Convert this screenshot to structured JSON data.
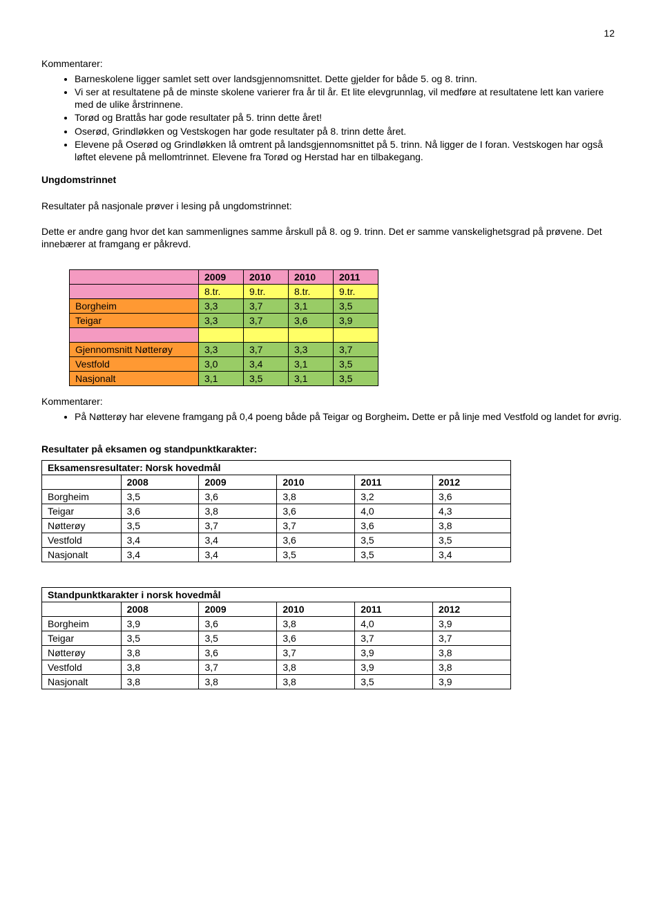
{
  "page_number": "12",
  "kommentarer_label": "Kommentarer:",
  "bullets_top": [
    "Barneskolene ligger samlet sett over landsgjennomsnittet. Dette gjelder for både 5. og 8. trinn.",
    "Vi ser at resultatene på de minste skolene varierer fra år til år. Et lite elevgrunnlag, vil medføre at resultatene lett kan variere med de ulike årstrinnene.",
    "Torød og Brattås har gode resultater på 5. trinn dette året!",
    "Oserød, Grindløkken og Vestskogen har gode resultater på 8. trinn dette året.",
    "Elevene på Oserød og Grindløkken lå omtrent på landsgjennomsnittet på 5. trinn. Nå ligger de I foran. Vestskogen har også løftet elevene på mellomtrinnet. Elevene fra Torød og Herstad har en tilbakegang."
  ],
  "ungdom_heading": "Ungdomstrinnet",
  "ungdom_intro": "Resultater på nasjonale prøver i lesing på ungdomstrinnet:",
  "ungdom_para": "Dette er andre gang hvor det kan sammenlignes samme årskull på 8. og 9. trinn. Det er samme vanskelighetsgrad på prøvene.  Det innebærer at framgang er påkrevd.",
  "table1": {
    "type": "table",
    "colors": {
      "pink": "#f49ac1",
      "yellow": "#ffff66",
      "orange": "#ff9933",
      "green": "#99cc66",
      "border": "#000000",
      "text": "#000000"
    },
    "font_size_pt": 11,
    "years": [
      "2009",
      "2010",
      "2010",
      "2011"
    ],
    "trinns": [
      "8.tr.",
      "9.tr.",
      "8.tr.",
      "9.tr."
    ],
    "rows_top": [
      {
        "label": "Borgheim",
        "vals": [
          "3,3",
          "3,7",
          "3,1",
          "3,5"
        ]
      },
      {
        "label": "Teigar",
        "vals": [
          "3,3",
          "3,7",
          "3,6",
          "3,9"
        ]
      }
    ],
    "rows_bottom": [
      {
        "label": "Gjennomsnitt Nøtterøy",
        "vals": [
          "3,3",
          "3,7",
          "3,3",
          "3,7"
        ]
      },
      {
        "label": "Vestfold",
        "vals": [
          "3,0",
          "3,4",
          "3,1",
          "3,5"
        ]
      },
      {
        "label": "Nasjonalt",
        "vals": [
          "3,1",
          "3,5",
          "3,1",
          "3,5"
        ]
      }
    ]
  },
  "bullets_mid_prefix": "På Nøtterøy har elevene framgang på 0,4 poeng både på Teigar og Borgheim",
  "bullets_mid_bold": ".",
  "bullets_mid_suffix": "  Dette er på linje med Vestfold og landet for øvrig.",
  "results_heading": "Resultater på eksamen og standpunktkarakter:",
  "table2": {
    "title": "Eksamensresultater: Norsk hovedmål",
    "years": [
      "2008",
      "2009",
      "2010",
      "2011",
      "2012"
    ],
    "rows": [
      {
        "label": "Borgheim",
        "vals": [
          "3,5",
          "3,6",
          "3,8",
          "3,2",
          "3,6"
        ]
      },
      {
        "label": "Teigar",
        "vals": [
          "3,6",
          "3,8",
          "3,6",
          "4,0",
          "4,3"
        ]
      },
      {
        "label": "Nøtterøy",
        "vals": [
          "3,5",
          "3,7",
          "3,7",
          "3,6",
          "3,8"
        ]
      },
      {
        "label": "Vestfold",
        "vals": [
          "3,4",
          "3,4",
          "3,6",
          "3,5",
          "3,5"
        ]
      },
      {
        "label": "Nasjonalt",
        "vals": [
          "3,4",
          "3,4",
          "3,5",
          "3,5",
          "3,4"
        ]
      }
    ]
  },
  "table3": {
    "title": "Standpunktkarakter i  norsk hovedmål",
    "years": [
      "2008",
      "2009",
      "2010",
      "2011",
      "2012"
    ],
    "rows": [
      {
        "label": "Borgheim",
        "vals": [
          "3,9",
          "3,6",
          "3,8",
          "4,0",
          "3,9"
        ]
      },
      {
        "label": "Teigar",
        "vals": [
          "3,5",
          "3,5",
          "3,6",
          "3,7",
          "3,7"
        ]
      },
      {
        "label": "Nøtterøy",
        "vals": [
          "3,8",
          "3,6",
          "3,7",
          "3,9",
          "3,8"
        ]
      },
      {
        "label": "Vestfold",
        "vals": [
          "3,8",
          "3,7",
          "3,8",
          "3,9",
          "3,8"
        ]
      },
      {
        "label": "Nasjonalt",
        "vals": [
          "3,8",
          "3,8",
          "3,8",
          "3,5",
          "3,9"
        ]
      }
    ]
  }
}
